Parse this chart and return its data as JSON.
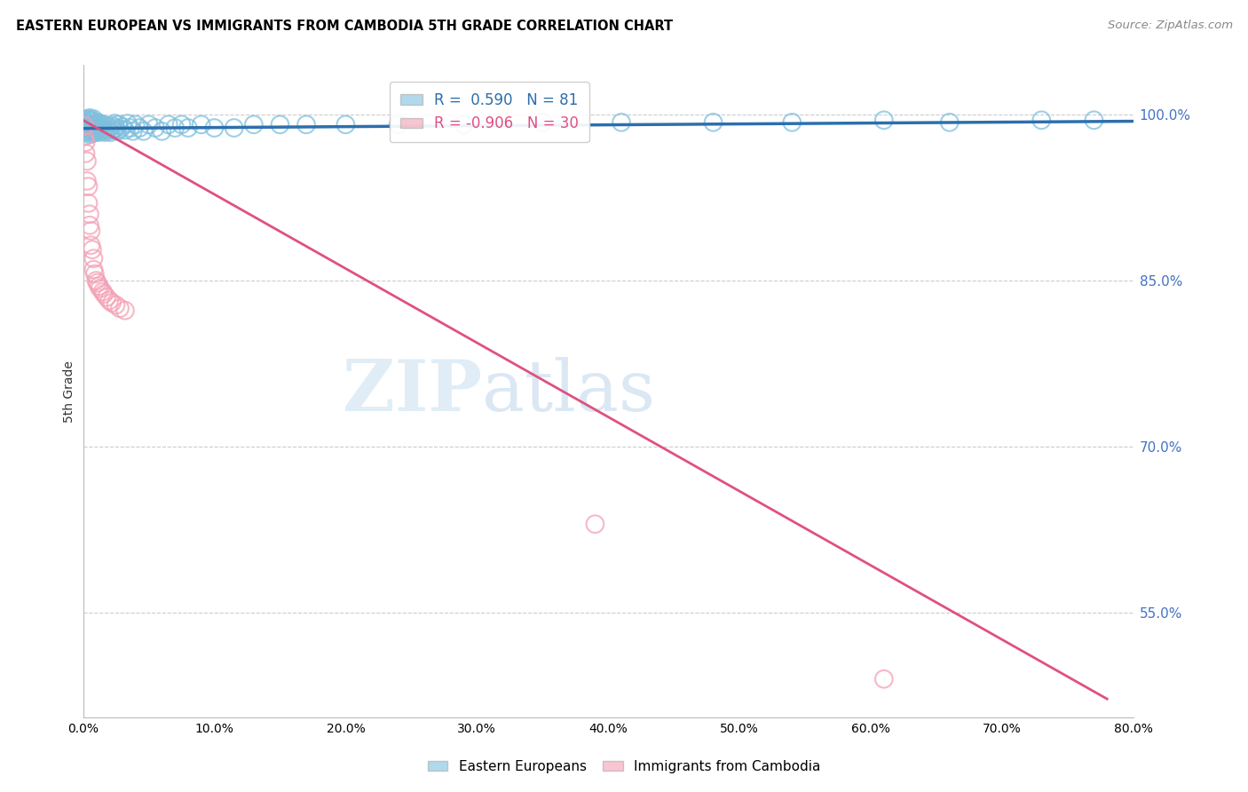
{
  "title": "EASTERN EUROPEAN VS IMMIGRANTS FROM CAMBODIA 5TH GRADE CORRELATION CHART",
  "source": "Source: ZipAtlas.com",
  "ylabel": "5th Grade",
  "ytick_labels": [
    "100.0%",
    "85.0%",
    "70.0%",
    "55.0%"
  ],
  "ytick_values": [
    1.0,
    0.85,
    0.7,
    0.55
  ],
  "blue_R": 0.59,
  "blue_N": 81,
  "pink_R": -0.906,
  "pink_N": 30,
  "blue_color": "#7fbfde",
  "pink_color": "#f4a0b5",
  "blue_line_color": "#2c6fad",
  "pink_line_color": "#e05080",
  "watermark_zip": "ZIP",
  "watermark_atlas": "atlas",
  "xmin": 0.0,
  "xmax": 0.8,
  "ymin": 0.455,
  "ymax": 1.045,
  "blue_x": [
    0.001,
    0.001,
    0.002,
    0.002,
    0.003,
    0.003,
    0.003,
    0.004,
    0.004,
    0.004,
    0.005,
    0.005,
    0.005,
    0.005,
    0.006,
    0.006,
    0.006,
    0.007,
    0.007,
    0.007,
    0.008,
    0.008,
    0.008,
    0.009,
    0.009,
    0.01,
    0.01,
    0.011,
    0.011,
    0.012,
    0.012,
    0.013,
    0.013,
    0.014,
    0.015,
    0.015,
    0.016,
    0.017,
    0.018,
    0.019,
    0.02,
    0.021,
    0.022,
    0.023,
    0.024,
    0.025,
    0.026,
    0.027,
    0.028,
    0.03,
    0.032,
    0.034,
    0.036,
    0.038,
    0.04,
    0.043,
    0.046,
    0.05,
    0.055,
    0.06,
    0.065,
    0.07,
    0.075,
    0.08,
    0.09,
    0.1,
    0.115,
    0.13,
    0.15,
    0.17,
    0.2,
    0.24,
    0.29,
    0.35,
    0.41,
    0.48,
    0.54,
    0.61,
    0.66,
    0.73,
    0.77
  ],
  "blue_y": [
    0.99,
    0.995,
    0.988,
    0.993,
    0.985,
    0.991,
    0.996,
    0.984,
    0.99,
    0.995,
    0.982,
    0.987,
    0.992,
    0.997,
    0.985,
    0.99,
    0.995,
    0.983,
    0.989,
    0.994,
    0.986,
    0.991,
    0.996,
    0.984,
    0.99,
    0.985,
    0.992,
    0.987,
    0.993,
    0.984,
    0.99,
    0.986,
    0.992,
    0.988,
    0.985,
    0.991,
    0.987,
    0.984,
    0.99,
    0.986,
    0.988,
    0.984,
    0.99,
    0.986,
    0.992,
    0.988,
    0.985,
    0.991,
    0.987,
    0.989,
    0.986,
    0.992,
    0.988,
    0.985,
    0.991,
    0.988,
    0.985,
    0.991,
    0.988,
    0.985,
    0.991,
    0.988,
    0.991,
    0.988,
    0.991,
    0.988,
    0.988,
    0.991,
    0.991,
    0.991,
    0.991,
    0.991,
    0.991,
    0.993,
    0.993,
    0.993,
    0.993,
    0.995,
    0.993,
    0.995,
    0.995
  ],
  "pink_x": [
    0.001,
    0.001,
    0.002,
    0.002,
    0.003,
    0.003,
    0.004,
    0.004,
    0.005,
    0.005,
    0.006,
    0.006,
    0.007,
    0.008,
    0.008,
    0.009,
    0.01,
    0.011,
    0.012,
    0.013,
    0.015,
    0.016,
    0.018,
    0.02,
    0.022,
    0.025,
    0.028,
    0.032,
    0.39,
    0.61
  ],
  "pink_y": [
    0.99,
    0.98,
    0.975,
    0.965,
    0.958,
    0.94,
    0.935,
    0.92,
    0.91,
    0.9,
    0.895,
    0.882,
    0.878,
    0.87,
    0.86,
    0.856,
    0.85,
    0.848,
    0.845,
    0.843,
    0.84,
    0.838,
    0.835,
    0.832,
    0.83,
    0.828,
    0.825,
    0.823,
    0.63,
    0.49
  ],
  "blue_line_x0": 0.0,
  "blue_line_x1": 0.8,
  "blue_line_y0": 0.9875,
  "blue_line_y1": 0.994,
  "pink_line_x0": 0.0,
  "pink_line_x1": 0.78,
  "pink_line_y0": 0.995,
  "pink_line_y1": 0.472
}
